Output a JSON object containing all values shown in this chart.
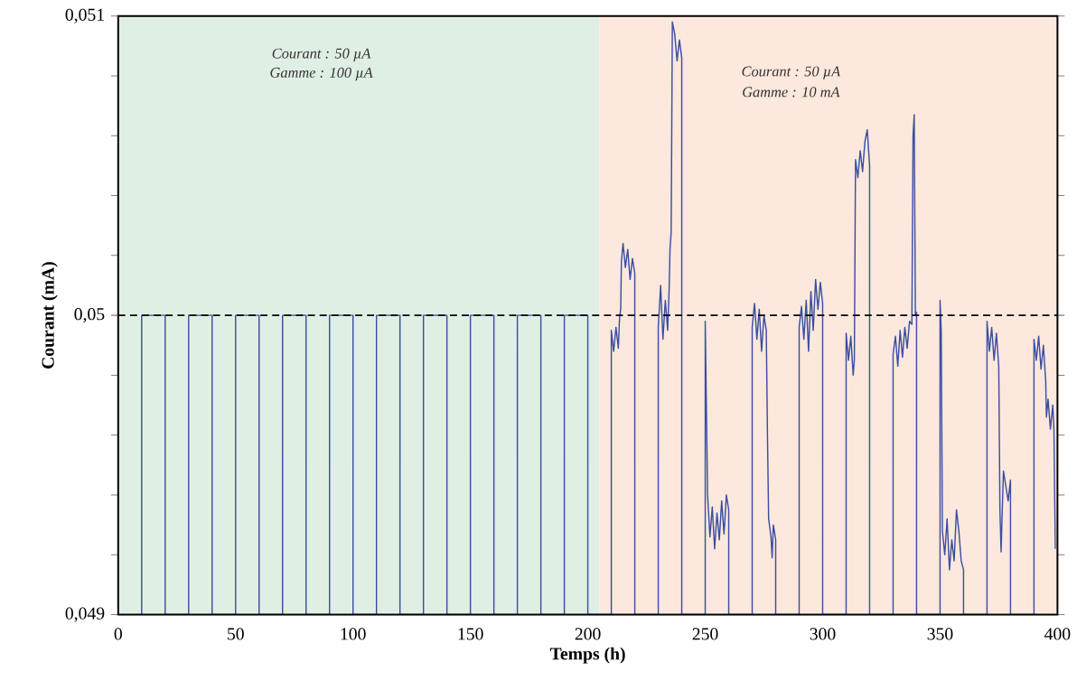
{
  "chart_data": {
    "type": "line",
    "xlabel": "Temps (h)",
    "ylabel": "Courant (mA)",
    "xlim": [
      0,
      400
    ],
    "xticks": [
      0,
      50,
      100,
      150,
      200,
      250,
      300,
      350,
      400
    ],
    "ylim": [
      0.049,
      0.051
    ],
    "yticks": [
      {
        "value": 0.049,
        "label": "0,049"
      },
      {
        "value": 0.0492,
        "label": null
      },
      {
        "value": 0.0494,
        "label": null
      },
      {
        "value": 0.0496,
        "label": null
      },
      {
        "value": 0.0498,
        "label": null
      },
      {
        "value": 0.05,
        "label": "0,05"
      },
      {
        "value": 0.0502,
        "label": null
      },
      {
        "value": 0.0504,
        "label": null
      },
      {
        "value": 0.0506,
        "label": null
      },
      {
        "value": 0.0508,
        "label": null
      },
      {
        "value": 0.051,
        "label": "0,051"
      }
    ],
    "grid": false,
    "marker": "none",
    "line_style": "solid",
    "bands": [
      {
        "axis": "x",
        "from": 0,
        "to": 205,
        "color": "#e0efe3"
      },
      {
        "axis": "x",
        "from": 205,
        "to": 400,
        "color": "#fde8dd"
      }
    ],
    "ref_lines": [
      {
        "axis": "y",
        "value": 0.05,
        "color": "#000000",
        "line_style": "dashed"
      }
    ],
    "annotations": [
      "*Courant : 50 µA*",
      "*Gamme : 100 µA*",
      "*Courant : 50 µA*",
      "*Gamme : 10 mA*"
    ],
    "series": [
      {
        "color": "#3b4fa2",
        "x": [
          10,
          10,
          20,
          20,
          30,
          30,
          40,
          40,
          50,
          50,
          60,
          60,
          70,
          70,
          80,
          80,
          90,
          90,
          100,
          100,
          110,
          110,
          120,
          120,
          130,
          130,
          140,
          140,
          150,
          150,
          160,
          160,
          170,
          170,
          180,
          180,
          190,
          190,
          200,
          200,
          210,
          210,
          211,
          212,
          213,
          213.5,
          214,
          214.3,
          215,
          216,
          217,
          218,
          219,
          220,
          220,
          230,
          230,
          231,
          232,
          233,
          234,
          234.6,
          235,
          235.5,
          236,
          237,
          238,
          239,
          240,
          240,
          250,
          250,
          251,
          252,
          253,
          254,
          255,
          256,
          257,
          258,
          259,
          260,
          260,
          270,
          270,
          271,
          272,
          273,
          274,
          275,
          276,
          276.5,
          277,
          278,
          278.5,
          279,
          280,
          280,
          290,
          290,
          291,
          292,
          293,
          294,
          295,
          296,
          297,
          298,
          299,
          300,
          300,
          310,
          310,
          311,
          312,
          313,
          313.5,
          314,
          315,
          316,
          317,
          318,
          319,
          320,
          320,
          330,
          330,
          331,
          332,
          333,
          334,
          335,
          336,
          337,
          338,
          338.5,
          339,
          339.5,
          340,
          340,
          350,
          350,
          350.5,
          351,
          352,
          353,
          354,
          355,
          356,
          357,
          358,
          359,
          360,
          360,
          370,
          370,
          371,
          372,
          373,
          374,
          375,
          375.5,
          376,
          376.5,
          377,
          378,
          379,
          380,
          380,
          390,
          390,
          391,
          392,
          393,
          394,
          395,
          395.3,
          396,
          397,
          398,
          398.5,
          398.8,
          399.1
        ],
        "values": [
          0.049,
          0.05,
          0.05,
          0.049,
          0.049,
          0.05,
          0.05,
          0.049,
          0.049,
          0.05,
          0.05,
          0.049,
          0.049,
          0.05,
          0.05,
          0.049,
          0.049,
          0.05,
          0.05,
          0.049,
          0.049,
          0.05,
          0.05,
          0.049,
          0.049,
          0.05,
          0.05,
          0.049,
          0.049,
          0.05,
          0.05,
          0.049,
          0.049,
          0.05,
          0.05,
          0.049,
          0.049,
          0.05,
          0.05,
          0.049,
          0.049,
          0.04995,
          0.04988,
          0.04996,
          0.04989,
          0.04999,
          0.05002,
          0.05018,
          0.05024,
          0.05016,
          0.05022,
          0.05012,
          0.05019,
          0.05014,
          0.049,
          0.049,
          0.04996,
          0.0501,
          0.04992,
          0.05005,
          0.04995,
          0.05008,
          0.05022,
          0.05028,
          0.05098,
          0.05094,
          0.05085,
          0.05092,
          0.05086,
          0.049,
          0.049,
          0.04998,
          0.0494,
          0.04926,
          0.04936,
          0.04922,
          0.04934,
          0.04925,
          0.04938,
          0.04927,
          0.0494,
          0.04935,
          0.049,
          0.049,
          0.04996,
          0.05004,
          0.04992,
          0.05002,
          0.04988,
          0.05,
          0.04995,
          0.0496,
          0.04932,
          0.04926,
          0.04919,
          0.0493,
          0.04925,
          0.049,
          0.049,
          0.04996,
          0.05003,
          0.04992,
          0.05005,
          0.04988,
          0.05008,
          0.04995,
          0.05012,
          0.05002,
          0.05011,
          0.05004,
          0.049,
          0.049,
          0.04994,
          0.04985,
          0.04993,
          0.0498,
          0.04985,
          0.05052,
          0.05046,
          0.05055,
          0.05048,
          0.05058,
          0.05062,
          0.0505,
          0.049,
          0.049,
          0.04987,
          0.04993,
          0.04983,
          0.04995,
          0.04986,
          0.04996,
          0.04989,
          0.04998,
          0.04997,
          0.0506,
          0.05067,
          0.05,
          0.05001,
          0.049,
          0.049,
          0.05005,
          0.04995,
          0.04928,
          0.0492,
          0.04932,
          0.04915,
          0.04925,
          0.04918,
          0.04935,
          0.04928,
          0.04918,
          0.04915,
          0.049,
          0.049,
          0.04998,
          0.04988,
          0.04996,
          0.04985,
          0.04994,
          0.04983,
          0.04935,
          0.04921,
          0.04935,
          0.04948,
          0.04943,
          0.04938,
          0.04945,
          0.049,
          0.049,
          0.04992,
          0.04985,
          0.04993,
          0.04982,
          0.0499,
          0.04978,
          0.04966,
          0.04972,
          0.04962,
          0.0497,
          0.04962,
          0.0494,
          0.04922
        ]
      }
    ]
  }
}
